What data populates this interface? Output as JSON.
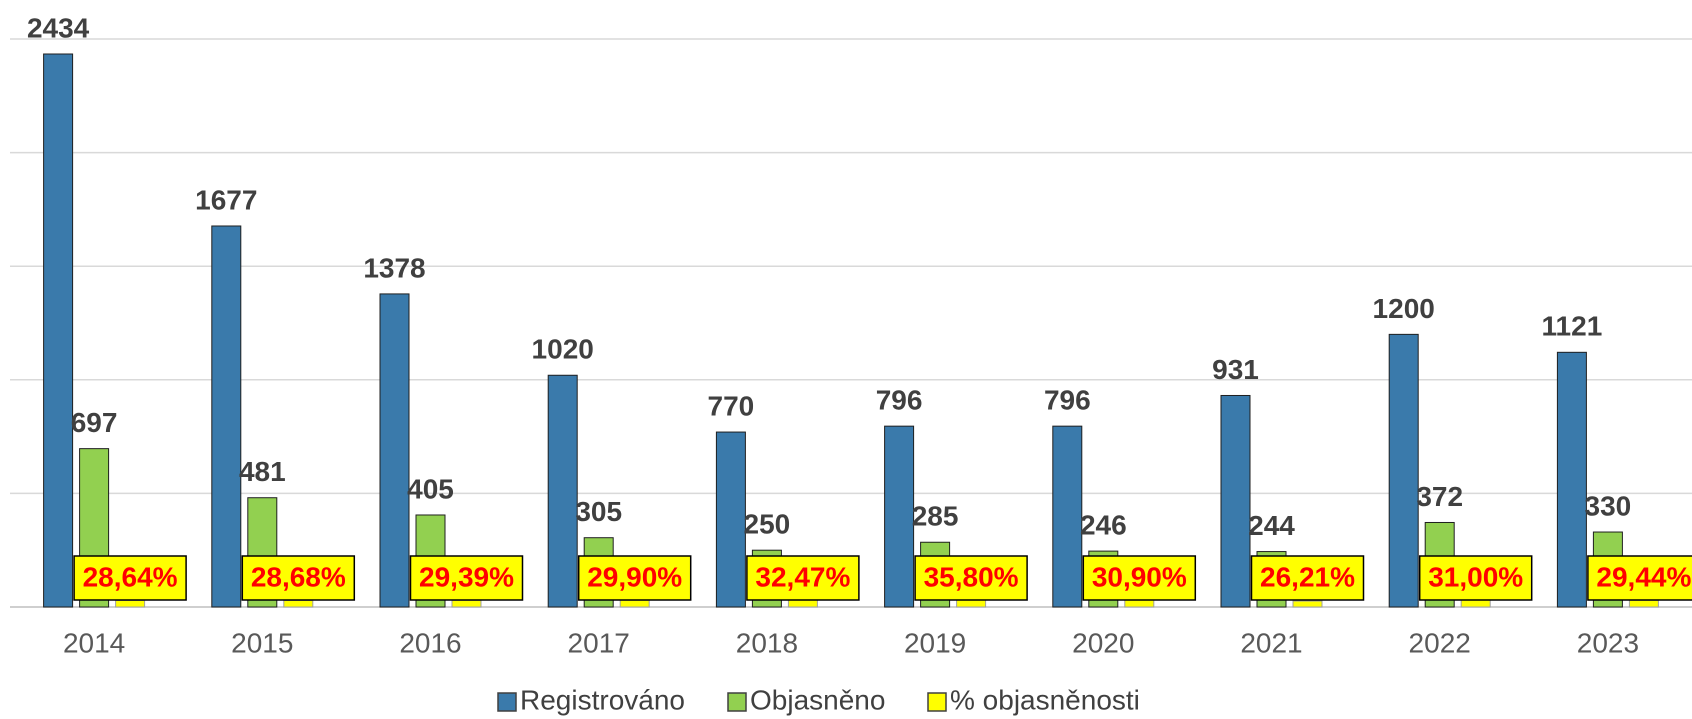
{
  "chart_data": {
    "type": "bar",
    "categories": [
      "2014",
      "2015",
      "2016",
      "2017",
      "2018",
      "2019",
      "2020",
      "2021",
      "2022",
      "2023"
    ],
    "series": [
      {
        "name": "Registrováno",
        "color": "#3a7aab",
        "values": [
          2434,
          1677,
          1378,
          1020,
          770,
          796,
          796,
          931,
          1200,
          1121
        ]
      },
      {
        "name": "Objasněno",
        "color": "#92d050",
        "values": [
          697,
          481,
          405,
          305,
          250,
          285,
          246,
          244,
          372,
          330
        ]
      },
      {
        "name": "% objasněnosti",
        "color": "#ffff00",
        "values": [
          28.64,
          28.68,
          29.39,
          29.9,
          32.47,
          35.8,
          30.9,
          26.21,
          31.0,
          29.44
        ],
        "value_labels": [
          "28,64%",
          "28,68%",
          "29,39%",
          "29,90%",
          "32,47%",
          "35,80%",
          "30,90%",
          "26,21%",
          "31,00%",
          "29,44%"
        ]
      }
    ],
    "ylim": [
      0,
      2500
    ],
    "yticks": [
      0,
      500,
      1000,
      1500,
      2000,
      2500
    ],
    "grid": true,
    "legend": "bottom"
  }
}
